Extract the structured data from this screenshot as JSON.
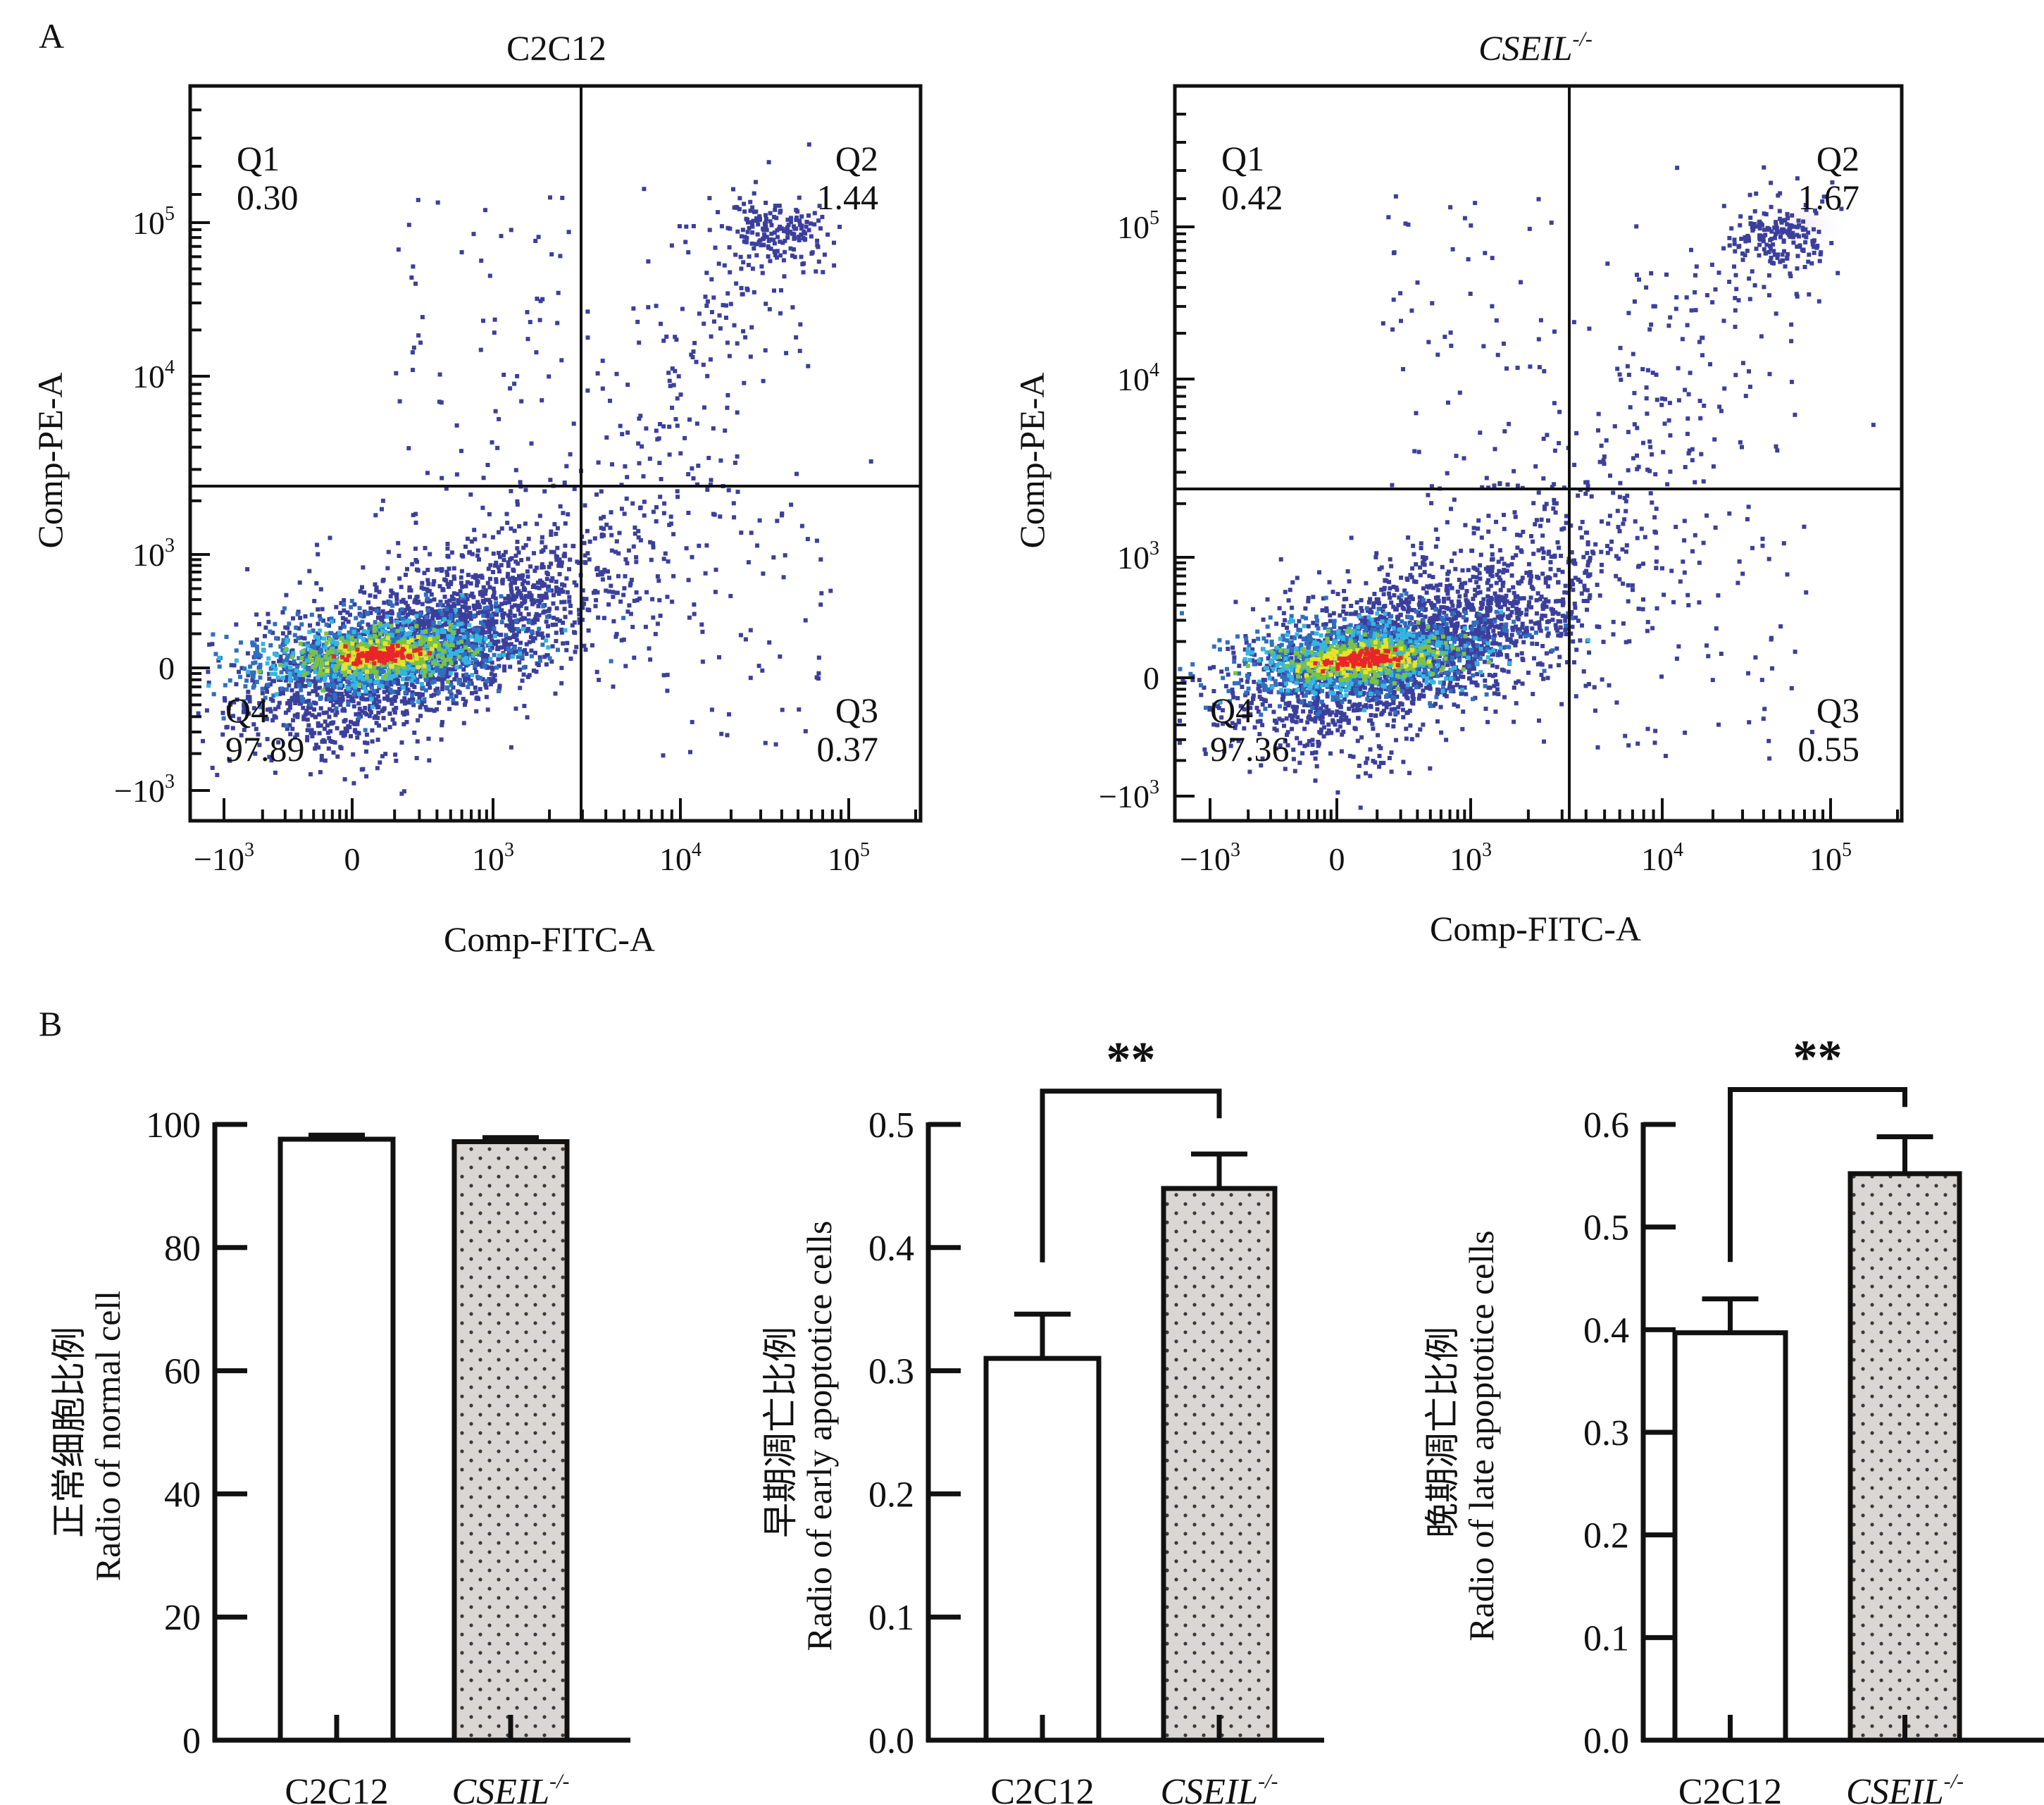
{
  "panels": {
    "a_label": "A",
    "b_label": "B"
  },
  "flow_plots": [
    {
      "title": "C2C12",
      "title_italic": false,
      "title_sup": "",
      "x_label": "Comp-FITC-A",
      "y_label": "Comp-PE-A",
      "x_ticks": [
        {
          "base": "−10",
          "exp": "3"
        },
        {
          "base": "0",
          "exp": ""
        },
        {
          "base": "10",
          "exp": "3"
        },
        {
          "base": "10",
          "exp": "4"
        },
        {
          "base": "10",
          "exp": "5"
        }
      ],
      "y_ticks": [
        {
          "base": "10",
          "exp": "5"
        },
        {
          "base": "10",
          "exp": "4"
        },
        {
          "base": "10",
          "exp": "3"
        },
        {
          "base": "0",
          "exp": ""
        },
        {
          "base": "−10",
          "exp": "3"
        }
      ],
      "quadrants": [
        {
          "name": "Q1",
          "value": "0.30"
        },
        {
          "name": "Q2",
          "value": "1.44"
        },
        {
          "name": "Q3",
          "value": "0.37"
        },
        {
          "name": "Q4",
          "value": "97.89"
        }
      ]
    },
    {
      "title": "CSEIL",
      "title_italic": true,
      "title_sup": "-/-",
      "x_label": "Comp-FITC-A",
      "y_label": "Comp-PE-A",
      "x_ticks": [
        {
          "base": "−10",
          "exp": "3"
        },
        {
          "base": "0",
          "exp": ""
        },
        {
          "base": "10",
          "exp": "3"
        },
        {
          "base": "10",
          "exp": "4"
        },
        {
          "base": "10",
          "exp": "5"
        }
      ],
      "y_ticks": [
        {
          "base": "10",
          "exp": "5"
        },
        {
          "base": "10",
          "exp": "4"
        },
        {
          "base": "10",
          "exp": "3"
        },
        {
          "base": "0",
          "exp": ""
        },
        {
          "base": "−10",
          "exp": "3"
        }
      ],
      "quadrants": [
        {
          "name": "Q1",
          "value": "0.42"
        },
        {
          "name": "Q2",
          "value": "1.67"
        },
        {
          "name": "Q3",
          "value": "0.55"
        },
        {
          "name": "Q4",
          "value": "97.36"
        }
      ]
    }
  ],
  "colors": {
    "dot": "#3b3f9c",
    "density": [
      "#3b3f9c",
      "#2f6fc0",
      "#35b6e0",
      "#7cc242",
      "#e8e22a",
      "#e8262a"
    ],
    "bar_ko_fill": "#d9d6d3",
    "bar_ko_dot": "#3a3a3a",
    "axis": "#111111"
  },
  "chart_data": [
    {
      "type": "scatter",
      "title": "C2C12",
      "xlabel": "Comp-FITC-A",
      "ylabel": "Comp-PE-A",
      "x_scale": "biexponential",
      "y_scale": "biexponential",
      "x_tick_labels": [
        "-10^3",
        "0",
        "10^3",
        "10^4",
        "10^5"
      ],
      "y_tick_labels": [
        "-10^3",
        "0",
        "10^3",
        "10^4",
        "10^5"
      ],
      "quadrant_percentages": {
        "Q1": 0.3,
        "Q2": 1.44,
        "Q3": 0.37,
        "Q4": 97.89
      }
    },
    {
      "type": "scatter",
      "title": "CSEIL-/-",
      "xlabel": "Comp-FITC-A",
      "ylabel": "Comp-PE-A",
      "x_scale": "biexponential",
      "y_scale": "biexponential",
      "x_tick_labels": [
        "-10^3",
        "0",
        "10^3",
        "10^4",
        "10^5"
      ],
      "y_tick_labels": [
        "-10^3",
        "0",
        "10^3",
        "10^4",
        "10^5"
      ],
      "quadrant_percentages": {
        "Q1": 0.42,
        "Q2": 1.67,
        "Q3": 0.55,
        "Q4": 97.36
      }
    },
    {
      "type": "bar",
      "categories": [
        "C2C12",
        "CSEIL-/-"
      ],
      "values": [
        97.6,
        97.2
      ],
      "errors": [
        0.6,
        0.6
      ],
      "ylabel_cn": "正常细胞比例",
      "ylabel": "Radio of normal cell",
      "ylim": [
        0,
        100
      ],
      "yticks": [
        "0",
        "20",
        "40",
        "60",
        "80",
        "100"
      ],
      "ytick_values": [
        0,
        20,
        40,
        60,
        80,
        100
      ],
      "significance": ""
    },
    {
      "type": "bar",
      "categories": [
        "C2C12",
        "CSEIL-/-"
      ],
      "values": [
        0.31,
        0.448
      ],
      "errors": [
        0.036,
        0.028
      ],
      "ylabel_cn": "早期凋亡比例",
      "ylabel": "Radio of early apoptotice cells",
      "ylim": [
        0,
        0.5
      ],
      "yticks": [
        "0.0",
        "0.1",
        "0.2",
        "0.3",
        "0.4",
        "0.5"
      ],
      "ytick_values": [
        0,
        0.1,
        0.2,
        0.3,
        0.4,
        0.5
      ],
      "significance": "**",
      "bracket": {
        "top": 0.527,
        "left_end": 0.388,
        "right_end": 0.505
      }
    },
    {
      "type": "bar",
      "categories": [
        "C2C12",
        "CSEIL-/-"
      ],
      "values": [
        0.397,
        0.552
      ],
      "errors": [
        0.033,
        0.036
      ],
      "ylabel_cn": "晚期凋亡比例",
      "ylabel": "Radio of late apoptotice cells",
      "ylim": [
        0,
        0.6
      ],
      "yticks": [
        "0.0",
        "0.1",
        "0.2",
        "0.3",
        "0.4",
        "0.5",
        "0.6"
      ],
      "ytick_values": [
        0,
        0.1,
        0.2,
        0.3,
        0.4,
        0.5,
        0.6
      ],
      "significance": "**",
      "bracket": {
        "top": 0.634,
        "left_end": 0.466,
        "right_end": 0.617
      }
    }
  ],
  "bar_categories": {
    "wt": "C2C12",
    "ko": "CSEIL",
    "ko_sup": "-/-"
  }
}
